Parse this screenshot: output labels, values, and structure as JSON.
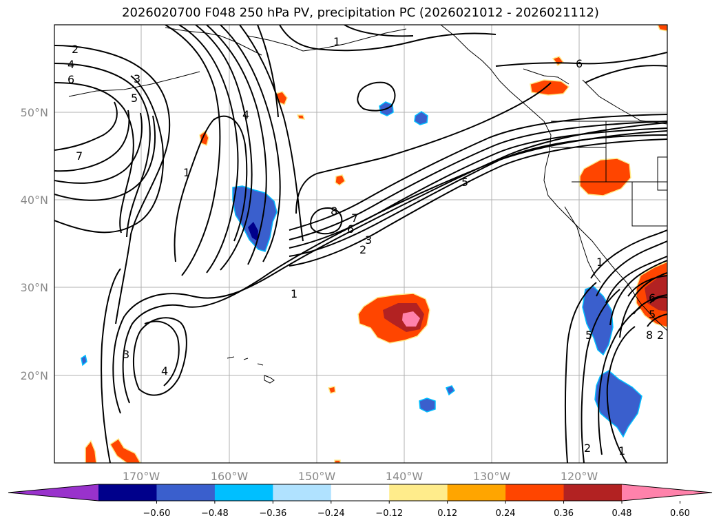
{
  "title": "2026020700 F048 250 hPa PV, precipitation PC (2026021012 - 2026021112)",
  "lat_labels": [
    "50°N",
    "40°N",
    "30°N",
    "20°N"
  ],
  "lon_labels": [
    "170°W",
    "160°W",
    "150°W",
    "140°W",
    "130°W",
    "120°W"
  ],
  "colorbar": {
    "ticks": [
      "−0.60",
      "−0.48",
      "−0.36",
      "−0.24",
      "−0.12",
      "0.12",
      "0.24",
      "0.36",
      "0.48",
      "0.60"
    ],
    "colors": [
      "#9932cc",
      "#00008b",
      "#3a5fcd",
      "#00bfff",
      "#b0e2ff",
      "#ffffff",
      "#ffec8b",
      "#ffa500",
      "#ff4500",
      "#b22222",
      "#ff82ab"
    ]
  },
  "pv_contour_labels": [
    "2",
    "4",
    "6",
    "7",
    "3",
    "5",
    "1",
    "4",
    "1",
    "5",
    "8",
    "7",
    "6",
    "3",
    "2",
    "1",
    "3",
    "4",
    "6",
    "5",
    "1",
    "2",
    "6",
    "8",
    "5",
    "2",
    "1"
  ]
}
